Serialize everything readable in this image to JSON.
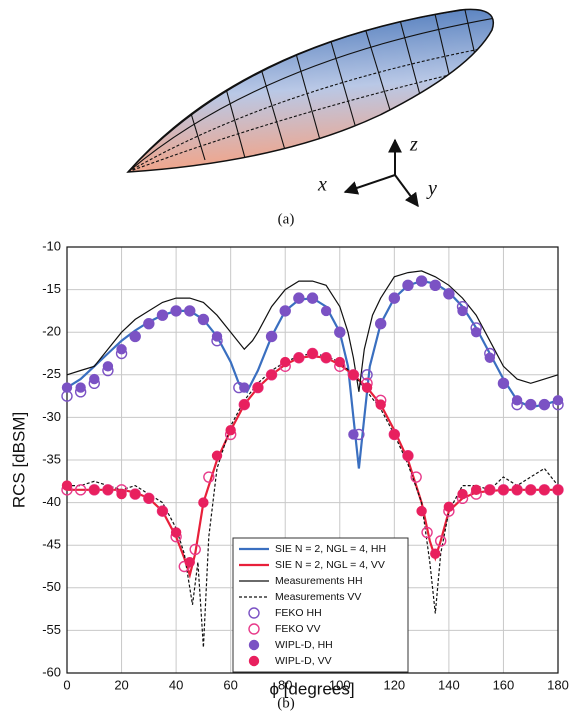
{
  "subfigure_a": {
    "axis_labels": {
      "x": "x",
      "y": "y",
      "z": "z"
    },
    "caption": "(a)"
  },
  "chart_data": {
    "type": "line",
    "caption": "(b)",
    "xlabel": "ϕ [degrees]",
    "ylabel": "RCS [dBSM]",
    "xlim": [
      0,
      180
    ],
    "ylim": [
      -60,
      -10
    ],
    "xticks": [
      0,
      20,
      40,
      60,
      80,
      100,
      120,
      140,
      160,
      180
    ],
    "yticks": [
      -60,
      -55,
      -50,
      -45,
      -40,
      -35,
      -30,
      -25,
      -20,
      -15,
      -10
    ],
    "grid": true,
    "legend": "bottom",
    "series": [
      {
        "name": "SIE N = 2, NGL = 4, HH",
        "color": "#3a6fc0",
        "style": "solid",
        "x": [
          0,
          5,
          10,
          15,
          20,
          25,
          30,
          35,
          40,
          45,
          50,
          55,
          60,
          63,
          66,
          70,
          75,
          80,
          85,
          90,
          95,
          100,
          103,
          105,
          107,
          109,
          111,
          115,
          120,
          125,
          130,
          135,
          140,
          145,
          150,
          155,
          160,
          165,
          170,
          175,
          180
        ],
        "values": [
          -26.5,
          -25.5,
          -24,
          -22.5,
          -21,
          -19.8,
          -18.8,
          -18,
          -17.5,
          -17.5,
          -18.5,
          -20.5,
          -23.5,
          -26,
          -27,
          -24.5,
          -20.5,
          -17.5,
          -16.2,
          -16,
          -17,
          -20,
          -24,
          -30,
          -36,
          -30,
          -24,
          -19,
          -16,
          -14.5,
          -14,
          -14.3,
          -15.3,
          -17,
          -19.5,
          -22.5,
          -25.5,
          -28,
          -28.8,
          -28.5,
          -28
        ]
      },
      {
        "name": "SIE N = 2, NGL = 4, VV",
        "color": "#e8203a",
        "style": "solid",
        "x": [
          0,
          10,
          20,
          25,
          30,
          35,
          40,
          43,
          45,
          47,
          50,
          55,
          60,
          65,
          70,
          75,
          80,
          85,
          90,
          95,
          100,
          105,
          110,
          115,
          120,
          125,
          130,
          133,
          135,
          137,
          140,
          145,
          150,
          160,
          170,
          180
        ],
        "values": [
          -38.5,
          -38.5,
          -38.5,
          -38.8,
          -39.5,
          -41,
          -44,
          -46.5,
          -48.5,
          -46,
          -40,
          -35,
          -31.5,
          -28.5,
          -26.5,
          -25,
          -23.8,
          -23,
          -22.8,
          -23,
          -23.8,
          -25,
          -26.5,
          -28.5,
          -31.5,
          -35,
          -40,
          -44.5,
          -46.5,
          -44.5,
          -41,
          -39.5,
          -38.8,
          -38.5,
          -38.5,
          -38.5
        ]
      },
      {
        "name": "Measurements HH",
        "color": "#111111",
        "style": "solid",
        "x": [
          0,
          5,
          10,
          15,
          20,
          25,
          30,
          35,
          40,
          45,
          50,
          55,
          60,
          65,
          68,
          70,
          75,
          80,
          85,
          90,
          95,
          100,
          103,
          105,
          107,
          109,
          112,
          115,
          120,
          125,
          130,
          135,
          140,
          145,
          150,
          155,
          160,
          165,
          170,
          175,
          180
        ],
        "values": [
          -25,
          -24.5,
          -24,
          -22,
          -20,
          -18.5,
          -17.5,
          -16.5,
          -16,
          -16,
          -16.5,
          -18,
          -20,
          -22,
          -21,
          -20,
          -17,
          -15,
          -14,
          -14,
          -14.5,
          -17,
          -20,
          -23,
          -27,
          -22,
          -18,
          -16,
          -13.5,
          -13,
          -12.8,
          -13.5,
          -14.5,
          -16,
          -18,
          -21,
          -24,
          -25.5,
          -26,
          -25.5,
          -25
        ]
      },
      {
        "name": "Measurements VV",
        "color": "#111111",
        "style": "dashed",
        "x": [
          0,
          5,
          10,
          15,
          20,
          25,
          30,
          35,
          40,
          43,
          46,
          48,
          50,
          52,
          55,
          60,
          65,
          70,
          75,
          80,
          85,
          90,
          95,
          100,
          105,
          110,
          115,
          120,
          125,
          130,
          133,
          135,
          137,
          140,
          145,
          150,
          155,
          160,
          165,
          170,
          175,
          180
        ],
        "values": [
          -38,
          -38,
          -37.5,
          -38,
          -38.5,
          -38,
          -39,
          -40,
          -43,
          -46,
          -52,
          -47,
          -57,
          -44,
          -36,
          -31,
          -28,
          -26,
          -24.5,
          -23.5,
          -22.8,
          -22.5,
          -22.8,
          -23.5,
          -25,
          -27,
          -29,
          -32,
          -35.5,
          -40,
          -47,
          -53,
          -46,
          -41,
          -38,
          -38,
          -38.5,
          -37,
          -38,
          -37,
          -36,
          -38
        ]
      },
      {
        "name": "FEKO HH",
        "color": "#7b52c4",
        "style": "open-marker",
        "x": [
          0,
          5,
          10,
          15,
          20,
          25,
          30,
          35,
          40,
          45,
          50,
          55,
          63,
          75,
          80,
          85,
          90,
          100,
          107,
          110,
          115,
          120,
          125,
          130,
          135,
          140,
          145,
          150,
          155,
          160,
          165,
          170,
          175,
          180
        ],
        "values": [
          -27.5,
          -27,
          -26,
          -24.5,
          -22.5,
          -20.5,
          -19,
          -18,
          -17.5,
          -17.5,
          -18.5,
          -21,
          -26.5,
          -20.5,
          -17.5,
          -16,
          -16,
          -20,
          -32,
          -25,
          -19,
          -16,
          -14.5,
          -14,
          -14.5,
          -15.5,
          -17,
          -19.5,
          -22.5,
          -26,
          -28.5,
          -28.5,
          -28.5,
          -28.5
        ]
      },
      {
        "name": "FEKO VV",
        "color": "#e83a8a",
        "style": "open-marker",
        "x": [
          0,
          5,
          10,
          15,
          20,
          25,
          30,
          35,
          40,
          43,
          47,
          52,
          60,
          65,
          70,
          75,
          80,
          85,
          90,
          95,
          100,
          105,
          110,
          115,
          120,
          125,
          128,
          132,
          137,
          140,
          145,
          150,
          155,
          160,
          165,
          170,
          175,
          180
        ],
        "values": [
          -38.5,
          -38.5,
          -38.5,
          -38.5,
          -38.5,
          -39,
          -39.5,
          -41,
          -44,
          -47.5,
          -45.5,
          -37,
          -32,
          -28.5,
          -26.5,
          -25,
          -24,
          -23,
          -22.5,
          -23,
          -24,
          -25,
          -26,
          -28,
          -32,
          -34.5,
          -37,
          -43.5,
          -44.5,
          -41,
          -39.5,
          -39,
          -38.5,
          -38.5,
          -38.5,
          -38.5,
          -38.5,
          -38.5
        ]
      },
      {
        "name": "WIPL-D, HH",
        "color": "#7b52c4",
        "style": "filled-marker",
        "x": [
          0,
          5,
          10,
          15,
          20,
          25,
          30,
          35,
          40,
          45,
          50,
          55,
          65,
          75,
          80,
          85,
          90,
          95,
          100,
          105,
          115,
          120,
          125,
          130,
          135,
          140,
          145,
          150,
          155,
          160,
          165,
          170,
          175,
          180
        ],
        "values": [
          -26.5,
          -26.5,
          -25.5,
          -24,
          -22,
          -20.5,
          -19,
          -18,
          -17.5,
          -17.5,
          -18.5,
          -20.5,
          -26.5,
          -20.5,
          -17.5,
          -16,
          -16,
          -17.5,
          -20,
          -32,
          -19,
          -16,
          -14.5,
          -14,
          -14.5,
          -15.5,
          -17.5,
          -20,
          -23,
          -26,
          -28,
          -28.5,
          -28.5,
          -28
        ]
      },
      {
        "name": "WIPL-D, VV",
        "color": "#e8205e",
        "style": "filled-marker",
        "x": [
          0,
          10,
          15,
          20,
          25,
          30,
          35,
          40,
          45,
          50,
          55,
          60,
          65,
          70,
          75,
          80,
          85,
          90,
          95,
          100,
          105,
          110,
          115,
          120,
          125,
          130,
          135,
          140,
          145,
          150,
          155,
          160,
          165,
          170,
          175,
          180
        ],
        "values": [
          -38,
          -38.5,
          -38.5,
          -39,
          -39,
          -39.5,
          -41,
          -43.5,
          -47,
          -40,
          -34.5,
          -31.5,
          -28.5,
          -26.5,
          -25,
          -23.5,
          -23,
          -22.5,
          -23,
          -23.5,
          -25,
          -26.5,
          -28.5,
          -32,
          -34.5,
          -41,
          -46,
          -40.5,
          -39,
          -38.5,
          -38.5,
          -38.5,
          -38.5,
          -38.5,
          -38.5,
          -38.5
        ]
      }
    ]
  }
}
